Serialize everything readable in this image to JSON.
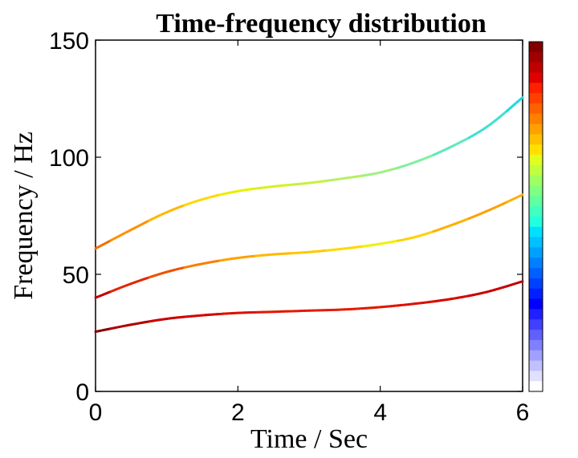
{
  "chart_data": {
    "type": "line",
    "title": "Time-frequency distribution",
    "xlabel": "Time / Sec",
    "ylabel": "Frequency / Hz",
    "xlim": [
      0,
      6
    ],
    "ylim": [
      0,
      150
    ],
    "x_ticks": [
      "0",
      "2",
      "4",
      "6"
    ],
    "y_ticks": [
      "0",
      "50",
      "100",
      "150"
    ],
    "grid": false,
    "legend": "none",
    "colormap": "jet",
    "colorbar": "right",
    "series": [
      {
        "x": [
          0,
          0.5,
          1,
          1.5,
          2,
          2.5,
          3,
          3.5,
          4,
          4.5,
          5,
          5.5,
          6
        ],
        "y": [
          25.5,
          28.5,
          31,
          32.5,
          33.5,
          34,
          34.5,
          35,
          36,
          37.5,
          39.5,
          42.5,
          47
        ],
        "colors": [
          "#8b0000",
          "#b00000",
          "#c80000",
          "#d40000",
          "#dc1000",
          "#e01800",
          "#e41c00",
          "#e41c00",
          "#e01800",
          "#dc1000",
          "#d40800",
          "#c80000",
          "#c00000"
        ]
      },
      {
        "x": [
          0,
          0.5,
          1,
          1.5,
          2,
          2.5,
          3,
          3.5,
          4,
          4.5,
          5,
          5.5,
          6
        ],
        "y": [
          40,
          46,
          51,
          54.5,
          57,
          58.5,
          59.5,
          61,
          63,
          66,
          71,
          77,
          84
        ],
        "colors": [
          "#c00000",
          "#e02800",
          "#f05000",
          "#f88000",
          "#ffa000",
          "#ffb800",
          "#ffc800",
          "#ffd800",
          "#f0f000",
          "#ffd000",
          "#ffb000",
          "#ffa000",
          "#ffb000"
        ]
      },
      {
        "x": [
          0,
          0.5,
          1,
          1.5,
          2,
          2.5,
          3,
          3.5,
          4,
          4.5,
          5,
          5.5,
          6
        ],
        "y": [
          61,
          69,
          76.5,
          82,
          85.5,
          87.5,
          89,
          91,
          93.5,
          98,
          104.5,
          113,
          125.5
        ],
        "colors": [
          "#f07000",
          "#ff9000",
          "#ffb800",
          "#ffd800",
          "#e8f000",
          "#d8f020",
          "#c8f040",
          "#b8f060",
          "#a0f080",
          "#80f0a0",
          "#60e8c0",
          "#40e0d0",
          "#20d8e0"
        ]
      }
    ],
    "colorbar_colors": [
      "#800000",
      "#a00000",
      "#c00000",
      "#e00000",
      "#ff2000",
      "#ff4000",
      "#ff6000",
      "#ff8000",
      "#ffa000",
      "#ffc000",
      "#ffe000",
      "#e0ff20",
      "#c0ff40",
      "#a0ff60",
      "#80ff80",
      "#60ffa0",
      "#40ffc0",
      "#20ffe0",
      "#00e0ff",
      "#00c0ff",
      "#00a0ff",
      "#0080ff",
      "#0060ff",
      "#0040ff",
      "#0020ff",
      "#0000ff",
      "#2020ff",
      "#4040ff",
      "#6060ff",
      "#8080ff",
      "#a0a0ff",
      "#c0c0ff",
      "#e0e0ff",
      "#ffffff"
    ]
  }
}
